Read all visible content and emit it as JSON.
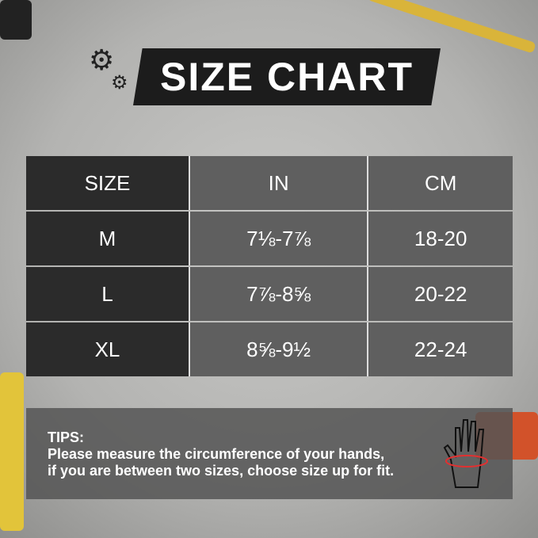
{
  "title": "SIZE CHART",
  "table": {
    "headers": [
      "SIZE",
      "IN",
      "CM"
    ],
    "rows": [
      [
        "M",
        "7⅛-7⅞",
        "18-20"
      ],
      [
        "L",
        "7⅞-8⅝",
        "20-22"
      ],
      [
        "XL",
        "8⅝-9½",
        "22-24"
      ]
    ]
  },
  "tips": {
    "label": "TIPS:",
    "line1": "Please measure the circumference of your hands,",
    "line2": "if you are between two sizes, choose size up for fit."
  },
  "icons": [
    "gears-icon",
    "hand-measure-icon"
  ],
  "colors": {
    "title_bg": "#1c1c1c",
    "size_col": "#2b2b2b",
    "cell": "#5f5f5f",
    "accent": "#e23030"
  }
}
